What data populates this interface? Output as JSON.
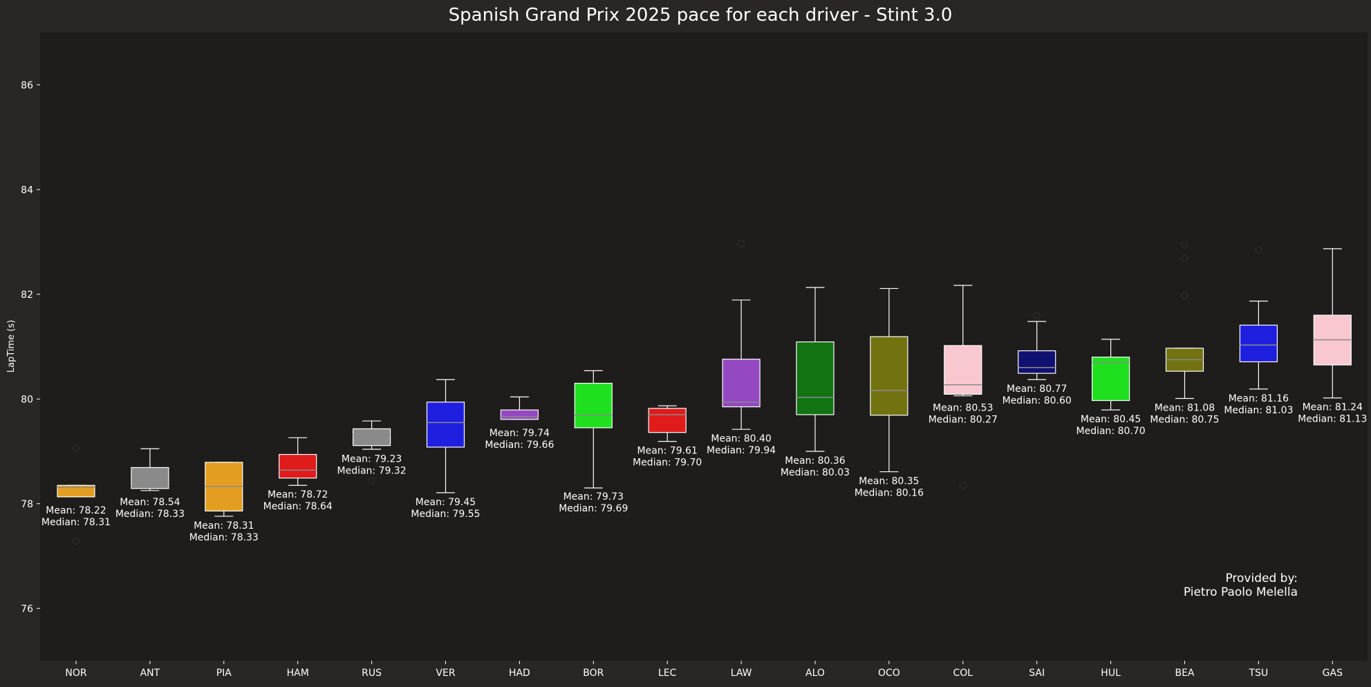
{
  "chart_data": {
    "type": "box",
    "title": "Spanish Grand Prix 2025 pace for each driver - Stint 3.0",
    "xlabel": "",
    "ylabel": "LapTime (s)",
    "ylim": [
      75.0,
      87.0
    ],
    "yticks": [
      76,
      78,
      80,
      82,
      84,
      86
    ],
    "grid": false,
    "legend": "none",
    "mean_label": "Mean:",
    "median_label": "Median:",
    "credit": [
      "Provided by:",
      "Pietro Paolo Melella"
    ],
    "colors": {
      "figure_bg": "#292625",
      "plot_bg": "#1e1d1c",
      "text": "#ffffff",
      "whisker": "#ffffff",
      "median_line": "#8a8a8a",
      "outlier": "#2c2c2c"
    },
    "drivers": [
      {
        "code": "NOR",
        "color": "#e39e22",
        "q1": 78.13,
        "median": 78.31,
        "q3": 78.35,
        "whisker_low": 78.13,
        "whisker_high": 78.35,
        "mean": 78.22,
        "outliers": [
          79.06,
          77.28
        ]
      },
      {
        "code": "ANT",
        "color": "#8a8a8a",
        "q1": 78.29,
        "median": 78.33,
        "q3": 78.69,
        "whisker_low": 78.25,
        "whisker_high": 79.05,
        "mean": 78.54,
        "outliers": []
      },
      {
        "code": "PIA",
        "color": "#e39e22",
        "q1": 77.86,
        "median": 78.33,
        "q3": 78.79,
        "whisker_low": 77.76,
        "whisker_high": 78.79,
        "mean": 78.31,
        "outliers": []
      },
      {
        "code": "HAM",
        "color": "#e01b1b",
        "q1": 78.49,
        "median": 78.64,
        "q3": 78.94,
        "whisker_low": 78.35,
        "whisker_high": 79.26,
        "mean": 78.72,
        "outliers": []
      },
      {
        "code": "RUS",
        "color": "#8a8a8a",
        "q1": 79.11,
        "median": 79.32,
        "q3": 79.43,
        "whisker_low": 79.04,
        "whisker_high": 79.58,
        "mean": 79.23,
        "outliers": [
          78.44
        ]
      },
      {
        "code": "VER",
        "color": "#1f1fe0",
        "q1": 79.08,
        "median": 79.55,
        "q3": 79.94,
        "whisker_low": 78.21,
        "whisker_high": 80.37,
        "mean": 79.45,
        "outliers": []
      },
      {
        "code": "HAD",
        "color": "#9448c2",
        "q1": 79.61,
        "median": 79.66,
        "q3": 79.79,
        "whisker_low": 79.61,
        "whisker_high": 80.04,
        "mean": 79.74,
        "outliers": []
      },
      {
        "code": "BOR",
        "color": "#1fe01f",
        "q1": 79.45,
        "median": 79.69,
        "q3": 80.3,
        "whisker_low": 78.3,
        "whisker_high": 80.54,
        "mean": 79.73,
        "outliers": []
      },
      {
        "code": "LEC",
        "color": "#e01b1b",
        "q1": 79.36,
        "median": 79.7,
        "q3": 79.82,
        "whisker_low": 79.19,
        "whisker_high": 79.87,
        "mean": 79.61,
        "outliers": []
      },
      {
        "code": "LAW",
        "color": "#9448c2",
        "q1": 79.85,
        "median": 79.94,
        "q3": 80.76,
        "whisker_low": 79.42,
        "whisker_high": 81.89,
        "mean": 80.4,
        "outliers": [
          82.97
        ]
      },
      {
        "code": "ALO",
        "color": "#117311",
        "q1": 79.7,
        "median": 80.03,
        "q3": 81.09,
        "whisker_low": 79.0,
        "whisker_high": 82.13,
        "mean": 80.36,
        "outliers": []
      },
      {
        "code": "OCO",
        "color": "#727210",
        "q1": 79.69,
        "median": 80.16,
        "q3": 81.19,
        "whisker_low": 78.61,
        "whisker_high": 82.11,
        "mean": 80.35,
        "outliers": []
      },
      {
        "code": "COL",
        "color": "#f8c7d0",
        "q1": 80.09,
        "median": 80.27,
        "q3": 81.02,
        "whisker_low": 80.06,
        "whisker_high": 82.17,
        "mean": 80.53,
        "outliers": [
          78.35
        ]
      },
      {
        "code": "SAI",
        "color": "#111172",
        "q1": 80.49,
        "median": 80.6,
        "q3": 80.92,
        "whisker_low": 80.37,
        "whisker_high": 81.48,
        "mean": 80.77,
        "outliers": [
          81.59
        ]
      },
      {
        "code": "HUL",
        "color": "#1fe01f",
        "q1": 79.97,
        "median": 80.7,
        "q3": 80.8,
        "whisker_low": 79.79,
        "whisker_high": 81.14,
        "mean": 80.45,
        "outliers": []
      },
      {
        "code": "BEA",
        "color": "#727210",
        "q1": 80.53,
        "median": 80.75,
        "q3": 80.97,
        "whisker_low": 80.01,
        "whisker_high": 80.97,
        "mean": 81.08,
        "outliers": [
          82.94,
          82.69,
          81.97
        ]
      },
      {
        "code": "TSU",
        "color": "#1f1fe0",
        "q1": 80.71,
        "median": 81.03,
        "q3": 81.41,
        "whisker_low": 80.19,
        "whisker_high": 81.87,
        "mean": 81.16,
        "outliers": [
          82.84
        ]
      },
      {
        "code": "GAS",
        "color": "#f8c7d0",
        "q1": 80.65,
        "median": 81.13,
        "q3": 81.6,
        "whisker_low": 80.02,
        "whisker_high": 82.87,
        "mean": 81.24,
        "outliers": []
      }
    ]
  }
}
